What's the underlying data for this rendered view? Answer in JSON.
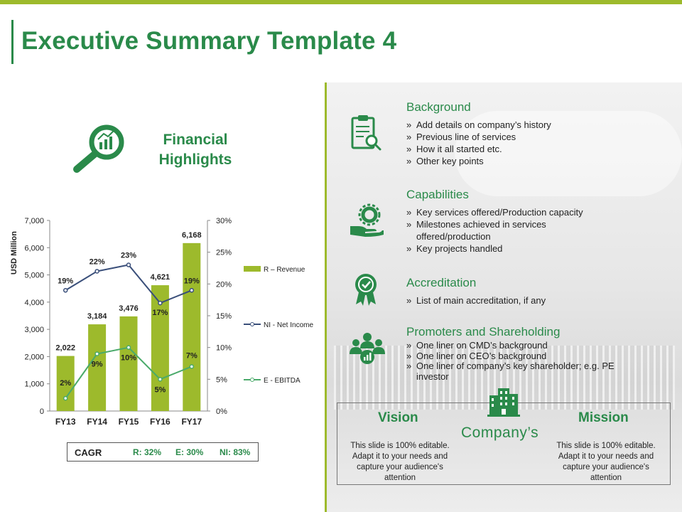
{
  "title": "Executive Summary Template 4",
  "highlights": {
    "title_line1": "Financial",
    "title_line2": "Highlights",
    "icon": "magnifier-chart-icon"
  },
  "chart_data": {
    "type": "bar",
    "categories": [
      "FY13",
      "FY14",
      "FY15",
      "FY16",
      "FY17"
    ],
    "ylabel": "USD Million",
    "ylim": [
      0,
      7000
    ],
    "y_ticks": [
      "0",
      "1,000",
      "2,000",
      "3,000",
      "4,000",
      "5,000",
      "6,000",
      "7,000"
    ],
    "y2lim": [
      0,
      30
    ],
    "y2_ticks": [
      "0%",
      "5%",
      "10%",
      "15%",
      "20%",
      "25%",
      "30%"
    ],
    "series": [
      {
        "name": "R – Revenue",
        "type": "bar",
        "axis": "left",
        "values": [
          2022,
          3184,
          3476,
          4621,
          6168
        ],
        "labels": [
          "2,022",
          "3,184",
          "3,476",
          "4,621",
          "6,168"
        ],
        "color": "#9dba2c"
      },
      {
        "name": "NI - Net Income",
        "type": "line",
        "axis": "right",
        "values": [
          19,
          22,
          23,
          17,
          19
        ],
        "labels": [
          "19%",
          "22%",
          "23%",
          "17%",
          "19%"
        ],
        "color": "#3a4f7a"
      },
      {
        "name": "E - EBITDA",
        "type": "line",
        "axis": "right",
        "values": [
          2,
          9,
          10,
          5,
          7
        ],
        "labels": [
          "2%",
          "9%",
          "10%",
          "5%",
          "7%"
        ],
        "color": "#4aaa6a"
      }
    ],
    "legend": "right"
  },
  "cagr": {
    "label": "CAGR",
    "r": "R: 32%",
    "e": "E: 30%",
    "ni": "NI: 83%"
  },
  "sections": [
    {
      "title": "Background",
      "icon": "clipboard-search-icon",
      "items": [
        "Add details on company’s history",
        "Previous line of services",
        "How it all started etc.",
        "Other key points"
      ]
    },
    {
      "title": "Capabilities",
      "icon": "gear-hand-icon",
      "items": [
        "Key services offered/Production capacity",
        "Milestones achieved in services offered/production",
        "Key projects handled"
      ]
    },
    {
      "title": "Accreditation",
      "icon": "award-ribbon-icon",
      "items": [
        "List of main accreditation, if any"
      ]
    },
    {
      "title": "Promoters and Shareholding",
      "icon": "group-people-icon",
      "items": [
        "One liner on CMD’s background",
        "One liner on CEO’s background",
        "One liner of company’s key shareholder; e.g. PE investor"
      ]
    }
  ],
  "vision": {
    "title": "Vision",
    "text": "This slide is 100% editable. Adapt it to your needs and capture your audience's attention"
  },
  "mission": {
    "title": "Mission",
    "text": "This slide is 100% editable. Adapt it to your needs and capture your audience's attention"
  },
  "company": {
    "label": "Company’s",
    "icon": "building-icon"
  },
  "colors": {
    "accent": "#2a8a4a",
    "bar": "#9dba2c",
    "line_ni": "#3a4f7a",
    "line_e": "#4aaa6a"
  }
}
